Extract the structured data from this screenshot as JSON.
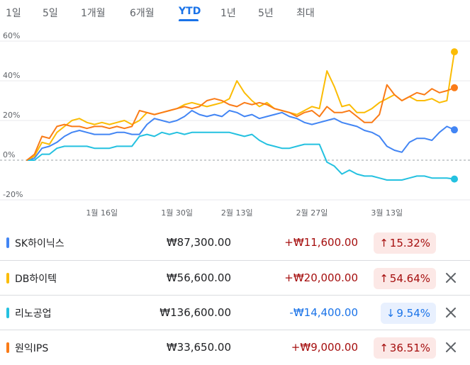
{
  "range_tabs": [
    {
      "label": "1일",
      "active": false
    },
    {
      "label": "5일",
      "active": false
    },
    {
      "label": "1개월",
      "active": false
    },
    {
      "label": "6개월",
      "active": false
    },
    {
      "label": "YTD",
      "active": true
    },
    {
      "label": "1년",
      "active": false
    },
    {
      "label": "5년",
      "active": false
    },
    {
      "label": "최대",
      "active": false
    }
  ],
  "chart_data": {
    "type": "line",
    "x": [
      "1월 2일",
      "1월 3일",
      "1월 4일",
      "1월 5일",
      "1월 8일",
      "1월 9일",
      "1월 10일",
      "1월 11일",
      "1월 12일",
      "1월 15일",
      "1월 16일",
      "1월 17일",
      "1월 18일",
      "1월 19일",
      "1월 22일",
      "1월 23일",
      "1월 24일",
      "1월 25일",
      "1월 26일",
      "1월 29일",
      "1월 30일",
      "1월 31일",
      "2월 1일",
      "2월 2일",
      "2월 5일",
      "2월 6일",
      "2월 7일",
      "2월 8일",
      "2월 13일",
      "2월 14일",
      "2월 15일",
      "2월 16일",
      "2월 19일",
      "2월 20일",
      "2월 21일",
      "2월 22일",
      "2월 23일",
      "2월 26일",
      "2월 27일",
      "2월 28일",
      "2월 29일",
      "3월 4일",
      "3월 5일",
      "3월 6일",
      "3월 7일",
      "3월 8일",
      "3월 11일",
      "3월 12일",
      "3월 13일",
      "3월 14일",
      "3월 15일",
      "3월 18일",
      "3월 19일",
      "3월 20일",
      "3월 21일",
      "3월 22일",
      "3월 25일",
      "3월 26일"
    ],
    "x_ticks": [
      "1월 16일",
      "1월 30일",
      "2월 13일",
      "2월 27일",
      "3월 13일"
    ],
    "y_ticks": [
      "60%",
      "40%",
      "20%",
      "0%",
      "-20%"
    ],
    "ylim": [
      -20,
      60
    ],
    "grid": true,
    "series": [
      {
        "name": "SK하이닉스",
        "color": "#4285f4",
        "values": [
          0,
          1,
          6,
          7,
          9,
          12,
          14,
          15,
          14,
          13,
          13,
          13,
          14,
          14,
          13,
          13,
          18,
          21,
          20,
          19,
          20,
          22,
          25,
          23,
          22,
          23,
          22,
          25,
          24,
          22,
          23,
          21,
          22,
          23,
          24,
          22,
          21,
          19,
          18,
          19,
          20,
          21,
          19,
          18,
          17,
          15,
          14,
          12,
          7,
          5,
          4,
          9,
          11,
          11,
          10,
          14,
          17,
          15.3
        ]
      },
      {
        "name": "DB하이텍",
        "color": "#fbbc04",
        "values": [
          0,
          2,
          9,
          8,
          14,
          17,
          20,
          21,
          19,
          18,
          19,
          18,
          19,
          20,
          18,
          20,
          24,
          23,
          24,
          25,
          26,
          28,
          29,
          28,
          27,
          28,
          29,
          31,
          40,
          34,
          30,
          27,
          29,
          26,
          25,
          24,
          23,
          25,
          27,
          26,
          45,
          37,
          27,
          28,
          24,
          24,
          26,
          29,
          31,
          33,
          30,
          32,
          30,
          30,
          31,
          29,
          30,
          54.6
        ]
      },
      {
        "name": "리노공업",
        "color": "#24c1e0",
        "values": [
          0,
          0,
          3,
          3,
          6,
          7,
          7,
          7,
          7,
          6,
          6,
          6,
          7,
          7,
          7,
          12,
          13,
          12,
          14,
          13,
          14,
          13,
          14,
          14,
          14,
          14,
          14,
          14,
          13,
          12,
          13,
          10,
          8,
          7,
          6,
          6,
          7,
          8,
          8,
          8,
          -1,
          -3,
          -7,
          -5,
          -7,
          -8,
          -8,
          -9,
          -10,
          -10,
          -10,
          -9,
          -8,
          -8,
          -9,
          -9,
          -9,
          -9.5
        ]
      },
      {
        "name": "원익IPS",
        "color": "#fa7b17",
        "values": [
          0,
          3,
          12,
          11,
          17,
          18,
          17,
          17,
          16,
          17,
          17,
          16,
          17,
          16,
          17,
          25,
          24,
          23,
          24,
          25,
          26,
          27,
          26,
          27,
          30,
          31,
          30,
          28,
          27,
          29,
          28,
          29,
          28,
          26,
          25,
          24,
          22,
          24,
          25,
          22,
          27,
          24,
          24,
          25,
          22,
          19,
          19,
          23,
          38,
          33,
          30,
          32,
          34,
          33,
          36,
          34,
          35,
          36.5
        ]
      }
    ]
  },
  "stocks": [
    {
      "name": "SK하이닉스",
      "color": "#4285f4",
      "price": "₩87,300.00",
      "change": "+₩11,600.00",
      "percent": "15.32%",
      "direction": "up",
      "arrow": "↑",
      "removable": false
    },
    {
      "name": "DB하이텍",
      "color": "#fbbc04",
      "price": "₩56,600.00",
      "change": "+₩20,000.00",
      "percent": "54.64%",
      "direction": "up",
      "arrow": "↑",
      "removable": true
    },
    {
      "name": "리노공업",
      "color": "#24c1e0",
      "price": "₩136,600.00",
      "change": "-₩14,400.00",
      "percent": "9.54%",
      "direction": "down",
      "arrow": "↓",
      "removable": true
    },
    {
      "name": "원익IPS",
      "color": "#fa7b17",
      "price": "₩33,650.00",
      "change": "+₩9,000.00",
      "percent": "36.51%",
      "direction": "up",
      "arrow": "↑",
      "removable": true
    }
  ]
}
